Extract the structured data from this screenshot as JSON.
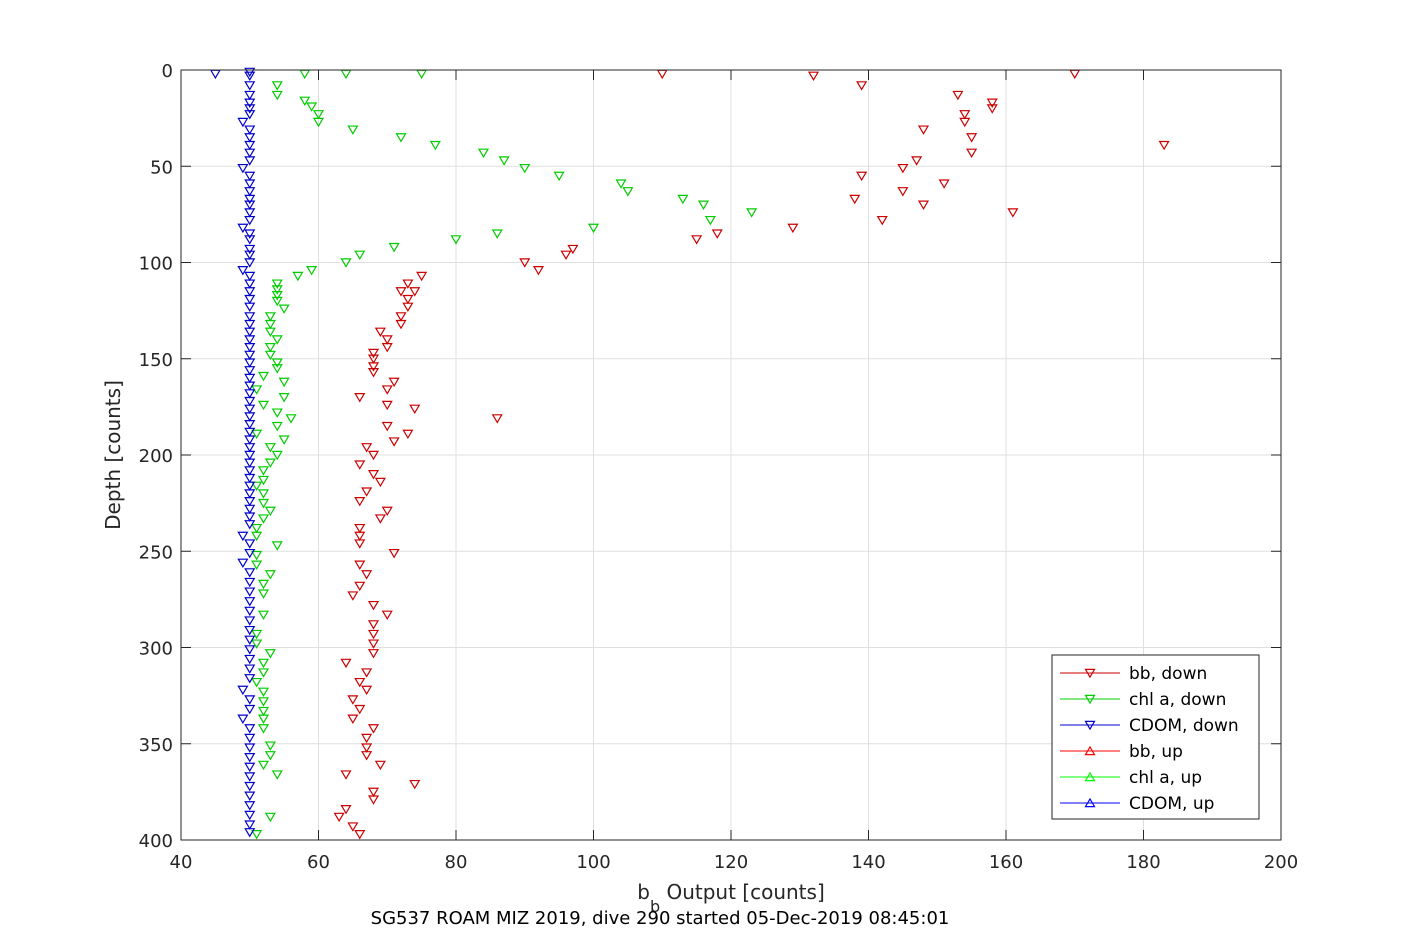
{
  "chart_data": {
    "type": "scatter",
    "caption": "SG537 ROAM MIZ 2019, dive 290 started 05-Dec-2019 08:45:01",
    "xlabel_main": "b",
    "xlabel_sub": "b",
    "xlabel_rest": " Output [counts]",
    "ylabel": "Depth [counts]",
    "xlim": [
      40,
      200
    ],
    "ylim": [
      0,
      400
    ],
    "y_reversed": true,
    "grid": true,
    "legend_position": "bottom-right",
    "x_ticks": [
      "40",
      "60",
      "80",
      "100",
      "120",
      "140",
      "160",
      "180",
      "200"
    ],
    "y_ticks": [
      "0",
      "50",
      "100",
      "150",
      "200",
      "250",
      "300",
      "350",
      "400"
    ],
    "series": [
      {
        "name": "bb, down",
        "color": "#cc0000",
        "marker": "triangle-down",
        "points": [
          [
            110,
            2
          ],
          [
            132,
            3
          ],
          [
            170,
            2
          ],
          [
            139,
            8
          ],
          [
            153,
            13
          ],
          [
            158,
            17
          ],
          [
            158,
            20
          ],
          [
            154,
            23
          ],
          [
            154,
            27
          ],
          [
            148,
            31
          ],
          [
            155,
            35
          ],
          [
            183,
            39
          ],
          [
            155,
            43
          ],
          [
            147,
            47
          ],
          [
            145,
            51
          ],
          [
            139,
            55
          ],
          [
            151,
            59
          ],
          [
            145,
            63
          ],
          [
            138,
            67
          ],
          [
            148,
            70
          ],
          [
            161,
            74
          ],
          [
            142,
            78
          ],
          [
            129,
            82
          ],
          [
            118,
            85
          ],
          [
            115,
            88
          ],
          [
            97,
            93
          ],
          [
            96,
            96
          ],
          [
            90,
            100
          ],
          [
            92,
            104
          ],
          [
            75,
            107
          ],
          [
            73,
            111
          ],
          [
            74,
            115
          ],
          [
            72,
            115
          ],
          [
            73,
            119
          ],
          [
            73,
            123
          ],
          [
            72,
            128
          ],
          [
            72,
            132
          ],
          [
            69,
            136
          ],
          [
            70,
            140
          ],
          [
            70,
            144
          ],
          [
            68,
            147
          ],
          [
            68,
            150
          ],
          [
            68,
            154
          ],
          [
            68,
            157
          ],
          [
            71,
            162
          ],
          [
            70,
            166
          ],
          [
            66,
            170
          ],
          [
            70,
            174
          ],
          [
            74,
            176
          ],
          [
            86,
            181
          ],
          [
            70,
            185
          ],
          [
            73,
            189
          ],
          [
            71,
            193
          ],
          [
            67,
            196
          ],
          [
            68,
            200
          ],
          [
            66,
            205
          ],
          [
            68,
            210
          ],
          [
            69,
            214
          ],
          [
            67,
            219
          ],
          [
            66,
            224
          ],
          [
            70,
            229
          ],
          [
            69,
            233
          ],
          [
            66,
            238
          ],
          [
            66,
            242
          ],
          [
            66,
            246
          ],
          [
            71,
            251
          ],
          [
            66,
            257
          ],
          [
            67,
            262
          ],
          [
            66,
            268
          ],
          [
            65,
            273
          ],
          [
            68,
            278
          ],
          [
            70,
            283
          ],
          [
            68,
            288
          ],
          [
            68,
            293
          ],
          [
            68,
            298
          ],
          [
            68,
            303
          ],
          [
            64,
            308
          ],
          [
            67,
            313
          ],
          [
            66,
            318
          ],
          [
            67,
            322
          ],
          [
            65,
            327
          ],
          [
            66,
            332
          ],
          [
            65,
            337
          ],
          [
            68,
            342
          ],
          [
            67,
            347
          ],
          [
            67,
            352
          ],
          [
            67,
            356
          ],
          [
            69,
            361
          ],
          [
            64,
            366
          ],
          [
            74,
            371
          ],
          [
            68,
            375
          ],
          [
            68,
            379
          ],
          [
            64,
            384
          ],
          [
            63,
            388
          ],
          [
            65,
            393
          ],
          [
            66,
            397
          ]
        ]
      },
      {
        "name": "chl a, down",
        "color": "#00cc00",
        "marker": "triangle-down",
        "points": [
          [
            58,
            2
          ],
          [
            64,
            2
          ],
          [
            75,
            2
          ],
          [
            54,
            8
          ],
          [
            54,
            13
          ],
          [
            58,
            16
          ],
          [
            59,
            19
          ],
          [
            60,
            23
          ],
          [
            60,
            27
          ],
          [
            65,
            31
          ],
          [
            72,
            35
          ],
          [
            77,
            39
          ],
          [
            84,
            43
          ],
          [
            87,
            47
          ],
          [
            90,
            51
          ],
          [
            95,
            55
          ],
          [
            104,
            59
          ],
          [
            105,
            63
          ],
          [
            113,
            67
          ],
          [
            116,
            70
          ],
          [
            123,
            74
          ],
          [
            117,
            78
          ],
          [
            100,
            82
          ],
          [
            86,
            85
          ],
          [
            80,
            88
          ],
          [
            71,
            92
          ],
          [
            66,
            96
          ],
          [
            64,
            100
          ],
          [
            59,
            104
          ],
          [
            57,
            107
          ],
          [
            54,
            111
          ],
          [
            54,
            114
          ],
          [
            54,
            117
          ],
          [
            54,
            120
          ],
          [
            55,
            124
          ],
          [
            53,
            128
          ],
          [
            53,
            132
          ],
          [
            53,
            136
          ],
          [
            54,
            140
          ],
          [
            53,
            144
          ],
          [
            53,
            148
          ],
          [
            54,
            152
          ],
          [
            54,
            155
          ],
          [
            52,
            159
          ],
          [
            55,
            162
          ],
          [
            51,
            166
          ],
          [
            55,
            170
          ],
          [
            52,
            174
          ],
          [
            54,
            178
          ],
          [
            56,
            181
          ],
          [
            54,
            185
          ],
          [
            51,
            189
          ],
          [
            55,
            192
          ],
          [
            53,
            196
          ],
          [
            54,
            200
          ],
          [
            53,
            204
          ],
          [
            52,
            208
          ],
          [
            52,
            213
          ],
          [
            51,
            216
          ],
          [
            52,
            220
          ],
          [
            52,
            225
          ],
          [
            53,
            229
          ],
          [
            52,
            233
          ],
          [
            51,
            238
          ],
          [
            51,
            242
          ],
          [
            54,
            247
          ],
          [
            51,
            252
          ],
          [
            51,
            257
          ],
          [
            53,
            262
          ],
          [
            52,
            267
          ],
          [
            52,
            272
          ],
          [
            52,
            283
          ],
          [
            51,
            293
          ],
          [
            51,
            298
          ],
          [
            53,
            303
          ],
          [
            52,
            308
          ],
          [
            52,
            313
          ],
          [
            51,
            318
          ],
          [
            52,
            323
          ],
          [
            52,
            328
          ],
          [
            52,
            333
          ],
          [
            52,
            337
          ],
          [
            52,
            342
          ],
          [
            53,
            351
          ],
          [
            53,
            356
          ],
          [
            52,
            361
          ],
          [
            54,
            366
          ],
          [
            53,
            388
          ],
          [
            51,
            397
          ]
        ]
      },
      {
        "name": "CDOM, down",
        "color": "#0000cc",
        "marker": "triangle-down",
        "points": [
          [
            45,
            2
          ],
          [
            50,
            1
          ],
          [
            50,
            3
          ],
          [
            50,
            8
          ],
          [
            50,
            13
          ],
          [
            50,
            17
          ],
          [
            50,
            20
          ],
          [
            50,
            23
          ],
          [
            49,
            27
          ],
          [
            50,
            31
          ],
          [
            50,
            35
          ],
          [
            50,
            39
          ],
          [
            50,
            43
          ],
          [
            50,
            47
          ],
          [
            49,
            51
          ],
          [
            50,
            55
          ],
          [
            50,
            59
          ],
          [
            50,
            63
          ],
          [
            50,
            67
          ],
          [
            50,
            70
          ],
          [
            50,
            74
          ],
          [
            50,
            78
          ],
          [
            49,
            82
          ],
          [
            50,
            85
          ],
          [
            50,
            88
          ],
          [
            50,
            93
          ],
          [
            50,
            96
          ],
          [
            50,
            100
          ],
          [
            49,
            104
          ],
          [
            50,
            107
          ],
          [
            50,
            111
          ],
          [
            50,
            115
          ],
          [
            50,
            119
          ],
          [
            50,
            123
          ],
          [
            50,
            128
          ],
          [
            50,
            132
          ],
          [
            50,
            136
          ],
          [
            50,
            140
          ],
          [
            50,
            144
          ],
          [
            50,
            148
          ],
          [
            50,
            152
          ],
          [
            50,
            156
          ],
          [
            50,
            160
          ],
          [
            50,
            164
          ],
          [
            50,
            168
          ],
          [
            50,
            172
          ],
          [
            50,
            176
          ],
          [
            50,
            180
          ],
          [
            50,
            184
          ],
          [
            50,
            188
          ],
          [
            50,
            192
          ],
          [
            50,
            196
          ],
          [
            50,
            200
          ],
          [
            50,
            204
          ],
          [
            50,
            208
          ],
          [
            50,
            212
          ],
          [
            50,
            216
          ],
          [
            50,
            220
          ],
          [
            50,
            224
          ],
          [
            50,
            228
          ],
          [
            50,
            232
          ],
          [
            50,
            236
          ],
          [
            49,
            242
          ],
          [
            50,
            246
          ],
          [
            50,
            251
          ],
          [
            49,
            256
          ],
          [
            50,
            261
          ],
          [
            50,
            266
          ],
          [
            50,
            271
          ],
          [
            50,
            276
          ],
          [
            50,
            281
          ],
          [
            50,
            286
          ],
          [
            50,
            291
          ],
          [
            50,
            296
          ],
          [
            50,
            301
          ],
          [
            50,
            306
          ],
          [
            50,
            311
          ],
          [
            50,
            316
          ],
          [
            49,
            322
          ],
          [
            50,
            327
          ],
          [
            50,
            332
          ],
          [
            49,
            337
          ],
          [
            50,
            342
          ],
          [
            50,
            347
          ],
          [
            50,
            352
          ],
          [
            50,
            357
          ],
          [
            50,
            362
          ],
          [
            50,
            367
          ],
          [
            50,
            372
          ],
          [
            50,
            377
          ],
          [
            50,
            382
          ],
          [
            50,
            387
          ],
          [
            50,
            392
          ],
          [
            50,
            396
          ]
        ]
      },
      {
        "name": "bb, up",
        "color": "#ff0000",
        "marker": "triangle-up",
        "points": []
      },
      {
        "name": "chl a, up",
        "color": "#00ff00",
        "marker": "triangle-up",
        "points": []
      },
      {
        "name": "CDOM, up",
        "color": "#0000ff",
        "marker": "triangle-up",
        "points": []
      }
    ]
  }
}
